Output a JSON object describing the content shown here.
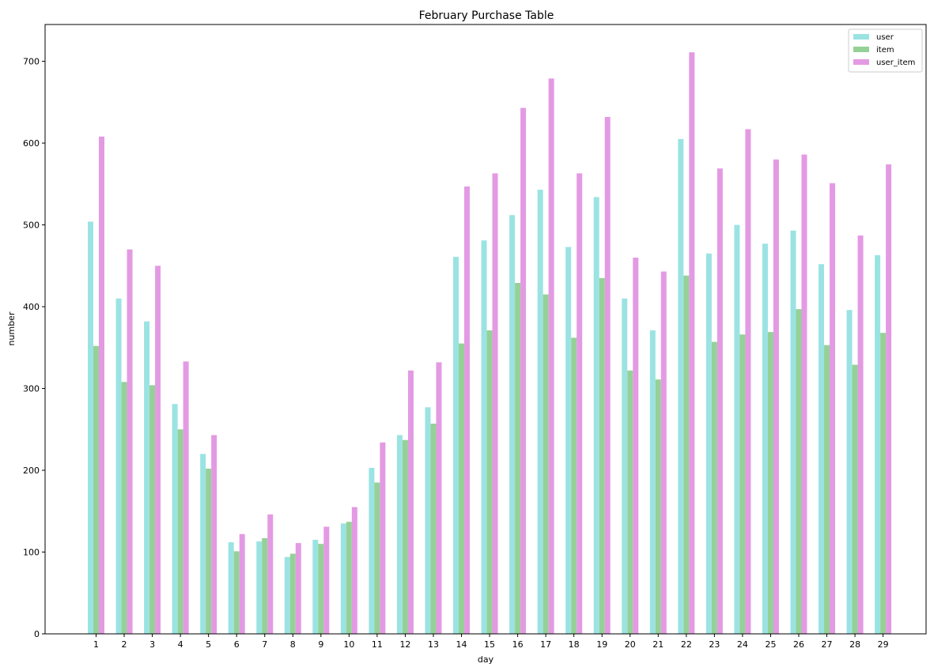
{
  "chart_data": {
    "type": "bar",
    "title": "February Purchase Table",
    "xlabel": "day",
    "ylabel": "number",
    "ylim": [
      0,
      745
    ],
    "yticks": [
      0,
      100,
      200,
      300,
      400,
      500,
      600,
      700
    ],
    "legend_position": "top-right",
    "grid": false,
    "categories": [
      "1",
      "2",
      "3",
      "4",
      "5",
      "6",
      "7",
      "8",
      "9",
      "10",
      "11",
      "12",
      "13",
      "14",
      "15",
      "16",
      "17",
      "18",
      "19",
      "20",
      "21",
      "22",
      "23",
      "24",
      "25",
      "26",
      "27",
      "28",
      "29"
    ],
    "series": [
      {
        "name": "user",
        "color": "#9be3e3",
        "values": [
          504,
          410,
          382,
          281,
          220,
          112,
          113,
          94,
          115,
          135,
          203,
          243,
          277,
          461,
          481,
          512,
          543,
          473,
          534,
          410,
          371,
          605,
          465,
          500,
          477,
          493,
          452,
          396,
          463
        ]
      },
      {
        "name": "item",
        "color": "#95d197",
        "values": [
          352,
          308,
          304,
          250,
          202,
          101,
          117,
          98,
          110,
          137,
          185,
          237,
          257,
          355,
          371,
          429,
          415,
          362,
          435,
          322,
          311,
          438,
          357,
          366,
          369,
          397,
          353,
          329,
          368
        ]
      },
      {
        "name": "user_item",
        "color": "#e39ae3",
        "values": [
          608,
          470,
          450,
          333,
          243,
          122,
          146,
          111,
          131,
          155,
          234,
          322,
          332,
          547,
          563,
          643,
          679,
          563,
          632,
          460,
          443,
          711,
          569,
          617,
          580,
          586,
          551,
          487,
          574
        ]
      }
    ]
  }
}
